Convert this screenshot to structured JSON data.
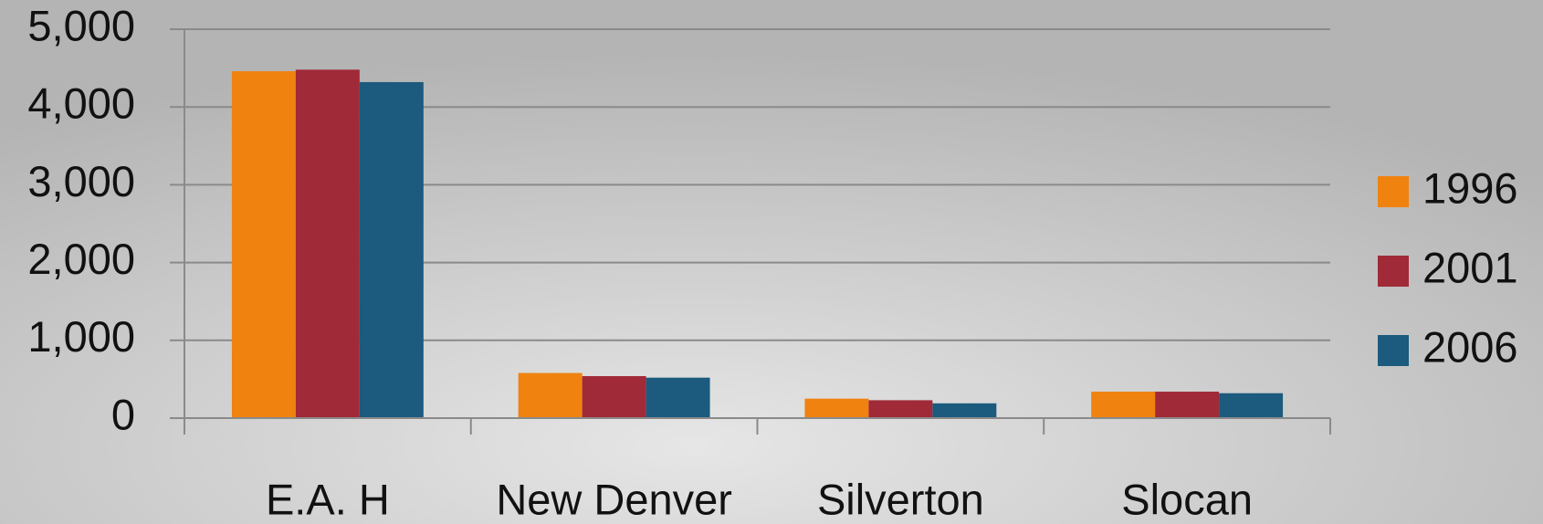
{
  "chart_data": {
    "type": "bar",
    "categories": [
      "E.A. H",
      "New Denver",
      "Silverton",
      "Slocan"
    ],
    "series": [
      {
        "name": "1996",
        "color": "#f0820f",
        "values": [
          4460,
          580,
          250,
          340
        ]
      },
      {
        "name": "2001",
        "color": "#a12a38",
        "values": [
          4480,
          540,
          230,
          340
        ]
      },
      {
        "name": "2006",
        "color": "#1c5a7e",
        "values": [
          4320,
          520,
          190,
          320
        ]
      }
    ],
    "ylim": [
      0,
      5000
    ],
    "yticks": [
      0,
      {
        "value": 1000,
        "label": "1,000"
      },
      {
        "value": 2000,
        "label": "2,000"
      },
      {
        "value": 3000,
        "label": "3,000"
      },
      {
        "value": 4000,
        "label": "4,000"
      },
      {
        "value": 5000,
        "label": "5,000"
      }
    ],
    "grid": true,
    "legend": "right"
  }
}
